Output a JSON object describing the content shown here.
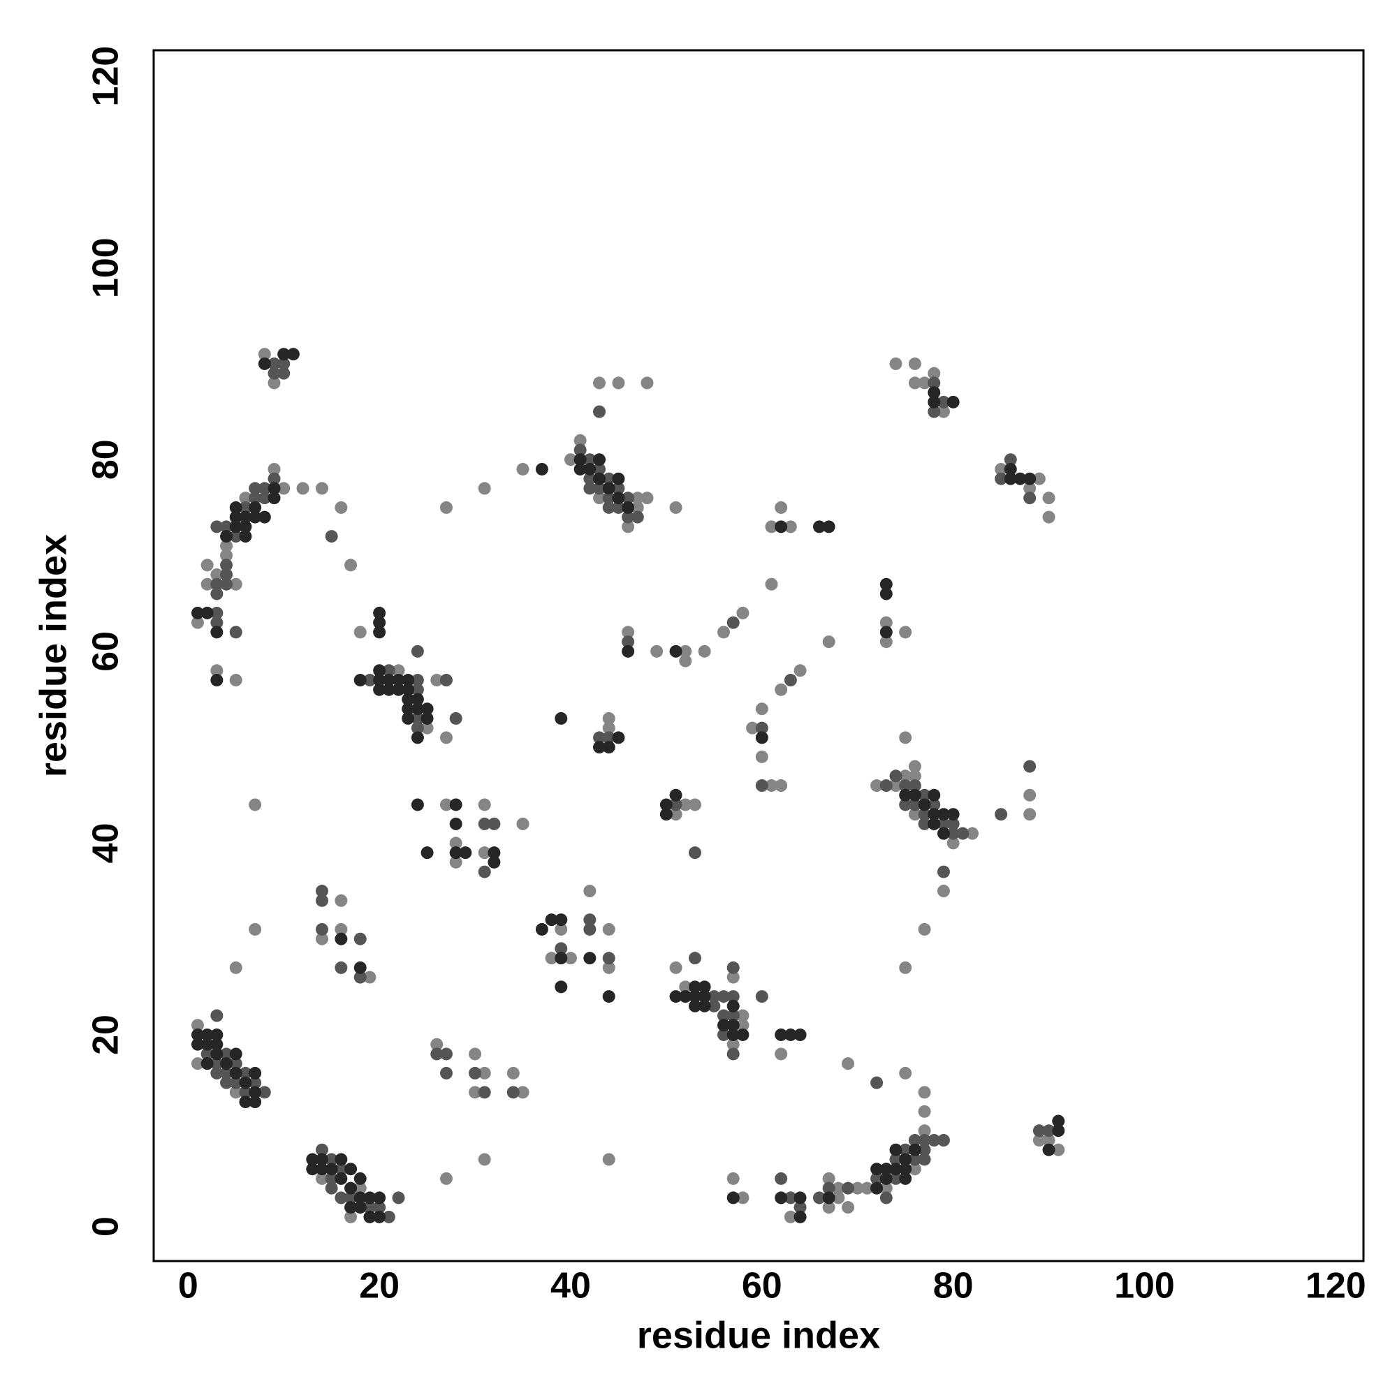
{
  "chart_data": {
    "type": "scatter",
    "xlabel": "residue index",
    "ylabel": "residue index",
    "xlim": [
      -3.6,
      122.9
    ],
    "ylim": [
      -3.6,
      122.7
    ],
    "xticks": [
      0,
      20,
      40,
      60,
      80,
      100,
      120
    ],
    "yticks": [
      0,
      20,
      40,
      60,
      80,
      100,
      120
    ],
    "grid": false,
    "series": [
      {
        "color": "#858585",
        "x": [
          8,
          9,
          1,
          2,
          2,
          3,
          4,
          4,
          5,
          6,
          9,
          10,
          12,
          14,
          16,
          17,
          3,
          5,
          7,
          7,
          5,
          1,
          1,
          5,
          14,
          17,
          18,
          14,
          16,
          16,
          19,
          18,
          22,
          25,
          26,
          27,
          27,
          28,
          28,
          31,
          31,
          35,
          27,
          31,
          35,
          26,
          30,
          30,
          31,
          34,
          35,
          27,
          31,
          38,
          39,
          40,
          42,
          44,
          44,
          44,
          40,
          41,
          43,
          46,
          47,
          47,
          48,
          43,
          45,
          48,
          51,
          44,
          44,
          46,
          49,
          52,
          52,
          54,
          56,
          58,
          51,
          52,
          53,
          51,
          52,
          57,
          57,
          58,
          58,
          62,
          57,
          58,
          59,
          60,
          60,
          61,
          62,
          61,
          61,
          62,
          63,
          62,
          64,
          67,
          63,
          67,
          67,
          68,
          68,
          69,
          69,
          70,
          71,
          73,
          75,
          76,
          77,
          77,
          77,
          72,
          74,
          75,
          75,
          76,
          76,
          76,
          80,
          82,
          79,
          77,
          75,
          88,
          88,
          73,
          73,
          75,
          74,
          76,
          76,
          77,
          78,
          79,
          85,
          88,
          89,
          90,
          90,
          89,
          90,
          91
        ],
        "values": [
          91,
          88,
          63,
          67,
          69,
          68,
          71,
          70,
          67,
          76,
          79,
          77,
          77,
          77,
          75,
          69,
          58,
          57,
          44,
          31,
          27,
          21,
          17,
          14,
          5,
          1,
          4,
          30,
          34,
          31,
          26,
          62,
          58,
          52,
          57,
          51,
          44,
          40,
          38,
          44,
          39,
          42,
          75,
          77,
          79,
          19,
          18,
          14,
          16,
          16,
          14,
          5,
          7,
          28,
          31,
          28,
          35,
          31,
          27,
          7,
          80,
          82,
          76,
          73,
          76,
          75,
          76,
          88,
          88,
          88,
          75,
          53,
          52,
          62,
          60,
          60,
          59,
          60,
          62,
          64,
          43,
          44,
          44,
          27,
          25,
          26,
          19,
          22,
          21,
          18,
          5,
          3,
          52,
          54,
          49,
          46,
          46,
          67,
          73,
          75,
          73,
          56,
          58,
          61,
          1,
          5,
          2,
          4,
          3,
          2,
          17,
          4,
          4,
          4,
          16,
          6,
          10,
          12,
          14,
          46,
          46,
          51,
          47,
          48,
          47,
          43,
          40,
          41,
          35,
          31,
          27,
          45,
          43,
          63,
          61,
          62,
          90,
          90,
          88,
          88,
          89,
          85,
          79,
          77,
          78,
          76,
          74,
          9,
          9,
          8
        ]
      },
      {
        "color": "#555555",
        "x": [
          9,
          9,
          10,
          10,
          3,
          3,
          3,
          3,
          3,
          4,
          4,
          4,
          4,
          5,
          6,
          7,
          7,
          8,
          8,
          9,
          15,
          5,
          2,
          3,
          3,
          3,
          4,
          4,
          4,
          5,
          5,
          6,
          6,
          7,
          8,
          14,
          15,
          15,
          15,
          16,
          16,
          17,
          19,
          20,
          21,
          22,
          14,
          14,
          14,
          16,
          18,
          18,
          19,
          21,
          24,
          24,
          24,
          24,
          24,
          27,
          28,
          31,
          31,
          32,
          26,
          27,
          27,
          30,
          31,
          34,
          39,
          42,
          42,
          44,
          41,
          42,
          42,
          42,
          43,
          43,
          44,
          44,
          44,
          45,
          45,
          46,
          46,
          47,
          43,
          43,
          44,
          46,
          57,
          51,
          53,
          53,
          55,
          55,
          56,
          56,
          56,
          57,
          57,
          57,
          57,
          60,
          60,
          60,
          63,
          62,
          63,
          64,
          66,
          67,
          69,
          72,
          72,
          73,
          74,
          74,
          75,
          76,
          76,
          77,
          77,
          77,
          78,
          79,
          73,
          74,
          75,
          75,
          76,
          76,
          77,
          77,
          77,
          78,
          79,
          80,
          80,
          81,
          79,
          85,
          88,
          78,
          78,
          79,
          85,
          86,
          88,
          89,
          90
        ],
        "values": [
          90,
          89,
          90,
          89,
          64,
          63,
          66,
          67,
          73,
          73,
          69,
          68,
          67,
          72,
          75,
          76,
          77,
          76,
          77,
          78,
          72,
          62,
          18,
          17,
          16,
          22,
          18,
          16,
          15,
          17,
          15,
          16,
          14,
          15,
          14,
          8,
          7,
          5,
          4,
          6,
          3,
          3,
          2,
          2,
          1,
          3,
          35,
          34,
          31,
          27,
          30,
          26,
          57,
          58,
          60,
          57,
          56,
          53,
          52,
          57,
          53,
          42,
          37,
          42,
          18,
          18,
          16,
          16,
          14,
          14,
          29,
          32,
          31,
          28,
          81,
          80,
          78,
          77,
          79,
          77,
          78,
          76,
          75,
          77,
          75,
          76,
          74,
          74,
          85,
          51,
          51,
          61,
          63,
          44,
          39,
          28,
          24,
          23,
          24,
          22,
          20,
          27,
          24,
          22,
          18,
          24,
          52,
          46,
          57,
          5,
          3,
          2,
          3,
          4,
          4,
          5,
          15,
          3,
          7,
          5,
          8,
          9,
          7,
          9,
          8,
          7,
          9,
          9,
          46,
          47,
          46,
          44,
          46,
          44,
          45,
          43,
          42,
          44,
          42,
          42,
          41,
          41,
          37,
          43,
          48,
          88,
          85,
          86,
          78,
          80,
          76,
          10,
          10
        ]
      },
      {
        "color": "#262626",
        "x": [
          8,
          10,
          11,
          1,
          2,
          3,
          4,
          5,
          5,
          5,
          6,
          6,
          6,
          7,
          7,
          8,
          9,
          9,
          3,
          1,
          1,
          2,
          2,
          2,
          3,
          3,
          3,
          4,
          5,
          5,
          6,
          6,
          7,
          7,
          7,
          13,
          13,
          14,
          14,
          15,
          16,
          16,
          17,
          17,
          17,
          18,
          18,
          18,
          19,
          19,
          20,
          20,
          16,
          18,
          18,
          20,
          20,
          20,
          20,
          20,
          20,
          21,
          21,
          22,
          22,
          23,
          23,
          23,
          23,
          23,
          24,
          24,
          24,
          25,
          25,
          24,
          25,
          28,
          28,
          28,
          29,
          32,
          32,
          37,
          37,
          38,
          39,
          39,
          39,
          42,
          44,
          39,
          41,
          41,
          42,
          43,
          43,
          44,
          45,
          45,
          46,
          43,
          44,
          45,
          46,
          51,
          50,
          50,
          51,
          51,
          52,
          53,
          53,
          53,
          54,
          54,
          54,
          56,
          57,
          57,
          57,
          58,
          62,
          63,
          64,
          57,
          60,
          62,
          66,
          67,
          62,
          64,
          64,
          67,
          72,
          72,
          73,
          73,
          74,
          74,
          75,
          75,
          75,
          76,
          75,
          76,
          77,
          78,
          78,
          78,
          79,
          79,
          80,
          73,
          73,
          73,
          78,
          78,
          80,
          86,
          86,
          87,
          88,
          90,
          91,
          91
        ],
        "values": [
          90,
          91,
          91,
          64,
          64,
          62,
          72,
          73,
          74,
          75,
          72,
          73,
          74,
          74,
          75,
          74,
          76,
          77,
          57,
          20,
          19,
          20,
          19,
          17,
          20,
          19,
          18,
          17,
          18,
          16,
          15,
          13,
          16,
          14,
          13,
          7,
          6,
          7,
          6,
          6,
          7,
          5,
          6,
          4,
          2,
          5,
          3,
          2,
          3,
          1,
          3,
          1,
          30,
          27,
          57,
          64,
          63,
          62,
          58,
          57,
          56,
          57,
          56,
          57,
          56,
          57,
          56,
          55,
          54,
          53,
          55,
          54,
          51,
          54,
          53,
          44,
          39,
          44,
          42,
          39,
          39,
          39,
          38,
          79,
          31,
          32,
          32,
          28,
          25,
          28,
          24,
          53,
          80,
          79,
          79,
          80,
          78,
          77,
          78,
          76,
          75,
          50,
          50,
          51,
          60,
          60,
          44,
          43,
          45,
          24,
          24,
          25,
          24,
          23,
          25,
          24,
          23,
          21,
          23,
          21,
          20,
          20,
          20,
          20,
          20,
          3,
          51,
          73,
          73,
          73,
          3,
          3,
          1,
          3,
          6,
          4,
          6,
          5,
          8,
          6,
          7,
          6,
          5,
          8,
          45,
          45,
          44,
          45,
          43,
          42,
          43,
          41,
          43,
          67,
          66,
          62,
          87,
          86,
          86,
          79,
          78,
          78,
          78,
          8,
          11,
          10
        ]
      }
    ]
  }
}
